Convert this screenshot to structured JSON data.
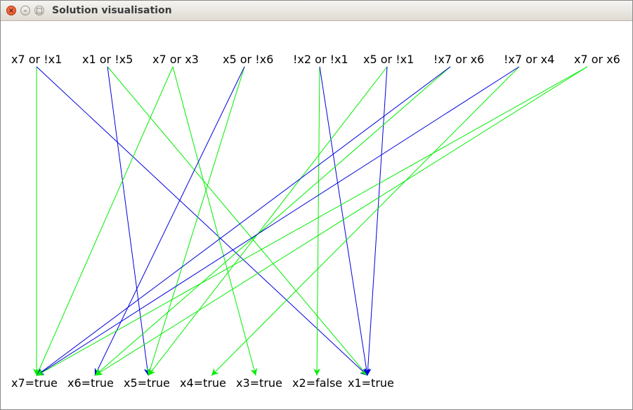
{
  "window": {
    "title": "Solution visualisation",
    "close_label": "×",
    "min_label": "–",
    "max_label": "□"
  },
  "clauses": [
    {
      "text": "x7 or !x1"
    },
    {
      "text": "x1 or !x5"
    },
    {
      "text": "x7 or x3"
    },
    {
      "text": "x5 or !x6"
    },
    {
      "text": "!x2 or !x1"
    },
    {
      "text": "x5 or !x1"
    },
    {
      "text": "!x7 or x6"
    },
    {
      "text": "!x7 or x4"
    },
    {
      "text": "x7 or x6"
    }
  ],
  "assignments": [
    {
      "text": "x7=true"
    },
    {
      "text": "x6=true"
    },
    {
      "text": "x5=true"
    },
    {
      "text": "x4=true"
    },
    {
      "text": "x3=true"
    },
    {
      "text": "x2=false"
    },
    {
      "text": "x1=true"
    }
  ],
  "colors": {
    "satisfied": "#00ee00",
    "negated": "#0000dd"
  },
  "edges": [
    {
      "from": 0,
      "to": 0,
      "color": "satisfied"
    },
    {
      "from": 0,
      "to": 6,
      "color": "negated"
    },
    {
      "from": 1,
      "to": 6,
      "color": "satisfied"
    },
    {
      "from": 1,
      "to": 2,
      "color": "negated"
    },
    {
      "from": 2,
      "to": 0,
      "color": "satisfied"
    },
    {
      "from": 2,
      "to": 4,
      "color": "satisfied"
    },
    {
      "from": 3,
      "to": 2,
      "color": "satisfied"
    },
    {
      "from": 3,
      "to": 1,
      "color": "negated"
    },
    {
      "from": 4,
      "to": 5,
      "color": "satisfied"
    },
    {
      "from": 4,
      "to": 6,
      "color": "negated"
    },
    {
      "from": 5,
      "to": 2,
      "color": "satisfied"
    },
    {
      "from": 5,
      "to": 6,
      "color": "negated"
    },
    {
      "from": 6,
      "to": 1,
      "color": "satisfied"
    },
    {
      "from": 6,
      "to": 0,
      "color": "negated"
    },
    {
      "from": 7,
      "to": 3,
      "color": "satisfied"
    },
    {
      "from": 7,
      "to": 0,
      "color": "negated"
    },
    {
      "from": 8,
      "to": 0,
      "color": "satisfied"
    },
    {
      "from": 8,
      "to": 1,
      "color": "satisfied"
    }
  ]
}
